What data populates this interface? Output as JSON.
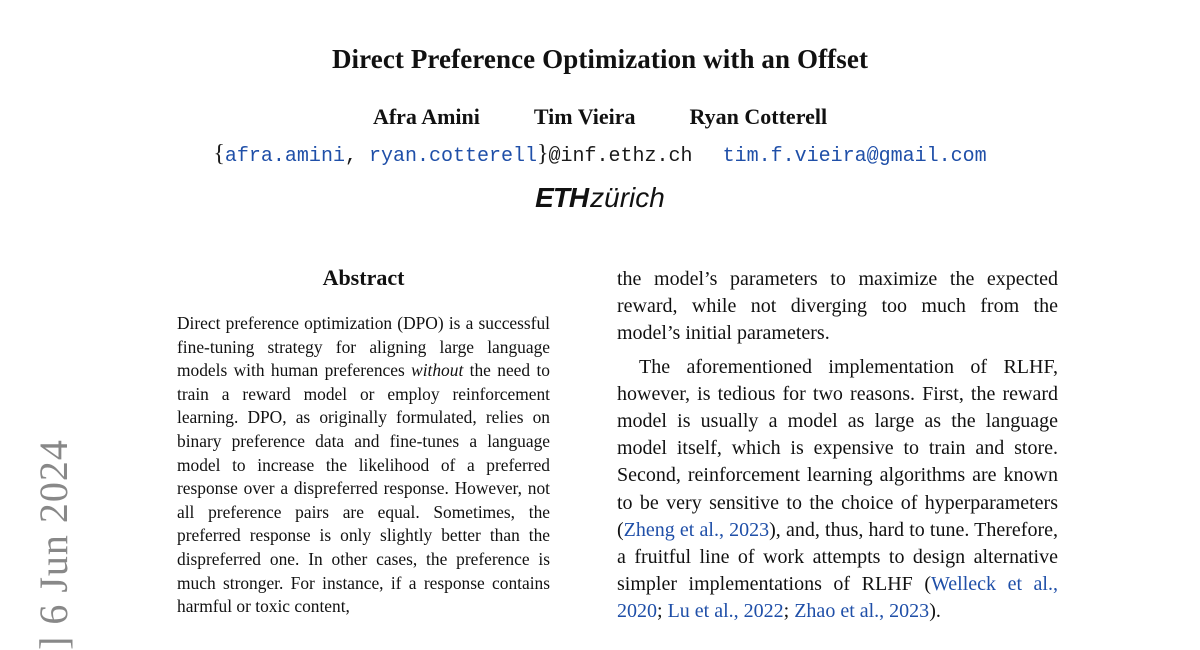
{
  "paper": {
    "title": "Direct Preference Optimization with an Offset",
    "authors": [
      "Afra Amini",
      "Tim Vieira",
      "Ryan Cotterell"
    ],
    "emails": {
      "brace_open": "{",
      "email1": "afra.amini",
      "sep": ", ",
      "email2": "ryan.cotterell",
      "brace_close": "}",
      "domain": "@inf.ethz.ch",
      "email3": "tim.f.vieira@gmail.com"
    },
    "affiliation_logo": {
      "eth": "ETH",
      "zurich": "zürich"
    },
    "arxiv_stamp": "] 6 Jun 2024",
    "abstract": {
      "heading": "Abstract",
      "part1": "Direct preference optimization (DPO) is a successful fine-tuning strategy for aligning large language models with human preferences ",
      "emphasis": "without",
      "part2": " the need to train a reward model or employ reinforcement learning. DPO, as originally formulated, relies on binary preference data and fine-tunes a language model to increase the likelihood of a preferred response over a dispreferred response. However, not all preference pairs are equal. Sometimes, the preferred response is only slightly better than the dispreferred one. In other cases, the preference is much stronger. For instance, if a response contains harmful or toxic content,"
    },
    "intro": {
      "p1": "the model’s parameters to maximize the expected reward, while not diverging too much from the model’s initial parameters.",
      "p2_a": "The aforementioned implementation of RLHF, however, is tedious for two reasons. First, the reward model is usually a model as large as the language model itself, which is expensive to train and store. Second, reinforcement learning algorithms are known to be very sensitive to the choice of hyperparameters (",
      "cite1": "Zheng et al., 2023",
      "p2_b": "), and, thus, hard to tune. Therefore, a fruitful line of work attempts to design alternative simpler implementations of RLHF (",
      "cite2": "Welleck et al., 2020",
      "sep1": "; ",
      "cite3": "Lu et al., 2022",
      "sep2": "; ",
      "cite4": "Zhao et al., 2023",
      "p2_c": ")."
    }
  }
}
